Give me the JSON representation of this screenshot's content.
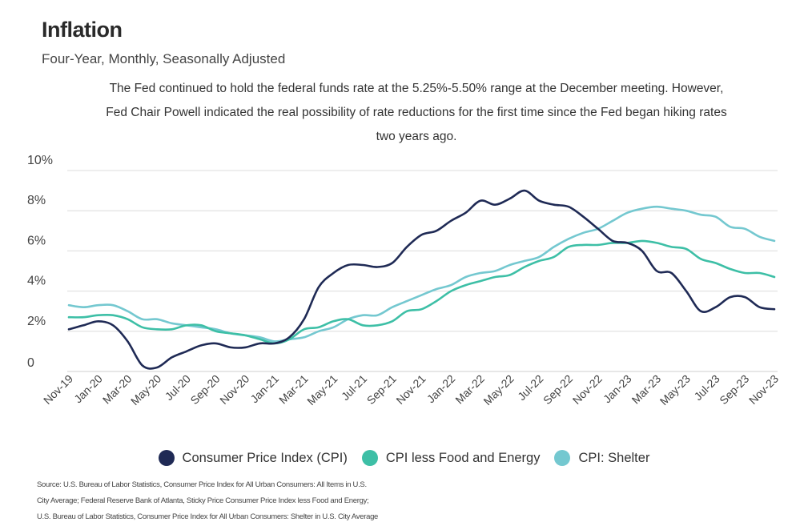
{
  "header": {
    "title": "Inflation",
    "subtitle": "Four-Year, Monthly, Seasonally Adjusted",
    "description_lines": [
      "The Fed continued to hold the federal funds rate at the 5.25%-5.50% range at the December meeting. However,",
      "Fed Chair Powell indicated the real possibility of rate reductions for the first time since the Fed began hiking rates",
      "two years ago."
    ]
  },
  "source_lines": [
    "Source:  U.S. Bureau of Labor Statistics, Consumer Price Index for All Urban Consumers: All Items in U.S.",
    "City Average; Federal Reserve Bank of Atlanta, Sticky Price Consumer Price Index less Food and Energy;",
    "U.S. Bureau of Labor Statistics, Consumer Price Index for All Urban Consumers: Shelter in U.S. City Average"
  ],
  "chart_data": {
    "type": "line",
    "title": "Inflation",
    "subtitle": "Four-Year, Monthly, Seasonally Adjusted",
    "ylim": [
      0,
      10
    ],
    "yticks": [
      0,
      2,
      4,
      6,
      8,
      10
    ],
    "ytick_labels": [
      "0",
      "2%",
      "4%",
      "6%",
      "8%",
      "10%"
    ],
    "grid": true,
    "legend_position": "bottom",
    "x": [
      "Nov-19",
      "Dec-19",
      "Jan-20",
      "Feb-20",
      "Mar-20",
      "Apr-20",
      "May-20",
      "Jun-20",
      "Jul-20",
      "Aug-20",
      "Sep-20",
      "Oct-20",
      "Nov-20",
      "Dec-20",
      "Jan-21",
      "Feb-21",
      "Mar-21",
      "Apr-21",
      "May-21",
      "Jun-21",
      "Jul-21",
      "Aug-21",
      "Sep-21",
      "Oct-21",
      "Nov-21",
      "Dec-21",
      "Jan-22",
      "Feb-22",
      "Mar-22",
      "Apr-22",
      "May-22",
      "Jun-22",
      "Jul-22",
      "Aug-22",
      "Sep-22",
      "Oct-22",
      "Nov-22",
      "Dec-22",
      "Jan-23",
      "Feb-23",
      "Mar-23",
      "Apr-23",
      "May-23",
      "Jun-23",
      "Jul-23",
      "Aug-23",
      "Sep-23",
      "Oct-23",
      "Nov-23"
    ],
    "x_tick_labels": [
      "Nov-19",
      "Jan-20",
      "Mar-20",
      "May-20",
      "Jul-20",
      "Sep-20",
      "Nov-20",
      "Jan-21",
      "Mar-21",
      "May-21",
      "Jul-21",
      "Sep-21",
      "Nov-21",
      "Jan-22",
      "Mar-22",
      "May-22",
      "Jul-22",
      "Sep-22",
      "Nov-22",
      "Jan-23",
      "Mar-23",
      "May-23",
      "Jul-23",
      "Sep-23",
      "Nov-23"
    ],
    "series": [
      {
        "name": "Consumer Price Index (CPI)",
        "color": "#1f2a55",
        "values": [
          2.1,
          2.3,
          2.5,
          2.3,
          1.5,
          0.3,
          0.2,
          0.7,
          1.0,
          1.3,
          1.4,
          1.2,
          1.2,
          1.4,
          1.4,
          1.7,
          2.6,
          4.2,
          4.9,
          5.3,
          5.3,
          5.2,
          5.4,
          6.2,
          6.8,
          7.0,
          7.5,
          7.9,
          8.5,
          8.3,
          8.6,
          9.0,
          8.5,
          8.3,
          8.2,
          7.7,
          7.1,
          6.5,
          6.4,
          6.0,
          5.0,
          4.9,
          4.0,
          3.0,
          3.2,
          3.7,
          3.7,
          3.2,
          3.1
        ]
      },
      {
        "name": "CPI less Food and Energy",
        "color": "#3dbfa6",
        "values": [
          2.7,
          2.7,
          2.8,
          2.8,
          2.6,
          2.2,
          2.1,
          2.1,
          2.3,
          2.3,
          2.0,
          1.9,
          1.8,
          1.6,
          1.4,
          1.6,
          2.1,
          2.2,
          2.5,
          2.6,
          2.3,
          2.3,
          2.5,
          3.0,
          3.1,
          3.5,
          4.0,
          4.3,
          4.5,
          4.7,
          4.8,
          5.2,
          5.5,
          5.7,
          6.2,
          6.3,
          6.3,
          6.4,
          6.4,
          6.5,
          6.4,
          6.2,
          6.1,
          5.6,
          5.4,
          5.1,
          4.9,
          4.9,
          4.7
        ]
      },
      {
        "name": "CPI: Shelter",
        "color": "#74c8d0",
        "values": [
          3.3,
          3.2,
          3.3,
          3.3,
          3.0,
          2.6,
          2.6,
          2.4,
          2.3,
          2.2,
          2.1,
          1.9,
          1.8,
          1.7,
          1.5,
          1.6,
          1.7,
          2.0,
          2.2,
          2.6,
          2.8,
          2.8,
          3.2,
          3.5,
          3.8,
          4.1,
          4.3,
          4.7,
          4.9,
          5.0,
          5.3,
          5.5,
          5.7,
          6.2,
          6.6,
          6.9,
          7.1,
          7.5,
          7.9,
          8.1,
          8.2,
          8.1,
          8.0,
          7.8,
          7.7,
          7.2,
          7.1,
          6.7,
          6.5
        ]
      }
    ]
  }
}
